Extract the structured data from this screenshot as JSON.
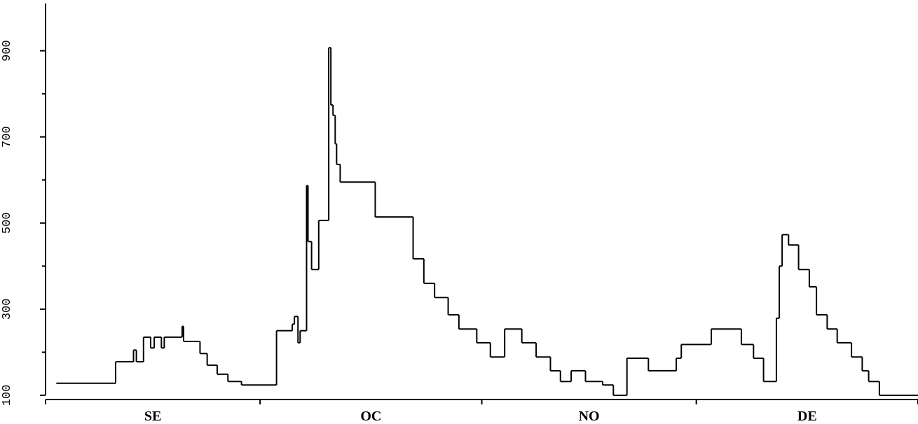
{
  "chart_data": {
    "type": "step-line",
    "categories": [
      "SE",
      "OC",
      "NO",
      "DE"
    ],
    "month_starts": [
      0,
      30,
      61,
      91,
      122
    ],
    "xlim": [
      0,
      122
    ],
    "ylim": [
      100,
      1000
    ],
    "yticks": [
      100,
      300,
      500,
      700,
      900
    ],
    "minor_yticks": [
      200,
      400,
      600,
      800
    ],
    "color": "#000000",
    "x": [
      1.5,
      9.8,
      12.3,
      12.7,
      13.7,
      14.7,
      15.2,
      16.2,
      16.6,
      19.1,
      19.3,
      21.6,
      22.6,
      24.0,
      25.5,
      27.4,
      32.3,
      34.5,
      34.8,
      35.3,
      35.6,
      36.5,
      36.7,
      37.2,
      38.2,
      39.6,
      39.9,
      40.2,
      40.5,
      40.7,
      41.2,
      46.1,
      51.4,
      52.9,
      54.4,
      56.3,
      57.8,
      60.3,
      62.2,
      64.2,
      66.6,
      68.6,
      70.6,
      72.0,
      73.5,
      75.5,
      77.9,
      79.4,
      81.3,
      84.3,
      88.2,
      88.9,
      93.1,
      97.3,
      99.0,
      100.4,
      102.2,
      102.6,
      103.0,
      103.9,
      105.3,
      106.8,
      107.8,
      109.3,
      110.7,
      112.7,
      114.2,
      115.1,
      116.6
    ],
    "values": [
      128,
      178,
      205,
      178,
      235,
      210,
      235,
      210,
      235,
      260,
      225,
      197,
      170,
      149,
      132,
      124,
      250,
      265,
      283,
      222,
      250,
      587,
      457,
      392,
      506,
      907,
      774,
      750,
      684,
      636,
      595,
      514,
      417,
      360,
      327,
      287,
      254,
      222,
      189,
      254,
      222,
      189,
      157,
      132,
      157,
      132,
      124,
      100,
      186,
      157,
      186,
      218,
      254,
      218,
      186,
      132,
      279,
      400,
      473,
      449,
      392,
      352,
      287,
      254,
      222,
      189,
      157,
      132,
      100
    ]
  }
}
